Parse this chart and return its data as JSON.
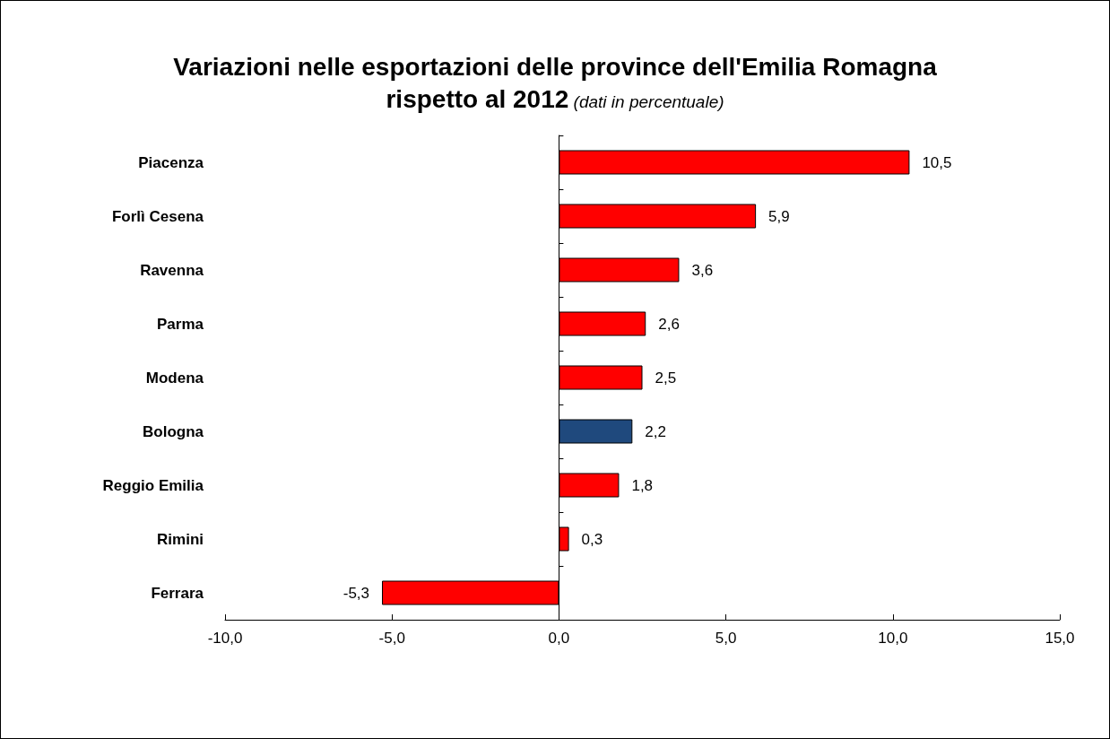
{
  "chart_data": {
    "type": "bar",
    "orientation": "horizontal",
    "title": "Variazioni nelle esportazioni delle province dell'Emilia Romagna rispetto al 2012",
    "subtitle": "(dati in percentuale)",
    "categories": [
      "Piacenza",
      "Forlì Cesena",
      "Ravenna",
      "Parma",
      "Modena",
      "Bologna",
      "Reggio Emilia",
      "Rimini",
      "Ferrara"
    ],
    "values": [
      10.5,
      5.9,
      3.6,
      2.6,
      2.5,
      2.2,
      1.8,
      0.3,
      -5.3
    ],
    "colors": [
      "#ff0000",
      "#ff0000",
      "#ff0000",
      "#ff0000",
      "#ff0000",
      "#1f497d",
      "#ff0000",
      "#ff0000",
      "#ff0000"
    ],
    "value_labels": [
      "10,5",
      "5,9",
      "3,6",
      "2,6",
      "2,5",
      "2,2",
      "1,8",
      "0,3",
      "-5,3"
    ],
    "xlim": [
      -10,
      15
    ],
    "xticks": [
      {
        "value": -10,
        "label": "-10,0"
      },
      {
        "value": -5,
        "label": "-5,0"
      },
      {
        "value": 0,
        "label": "0,0"
      },
      {
        "value": 5,
        "label": "5,0"
      },
      {
        "value": 10,
        "label": "10,0"
      },
      {
        "value": 15,
        "label": "15,0"
      }
    ]
  }
}
